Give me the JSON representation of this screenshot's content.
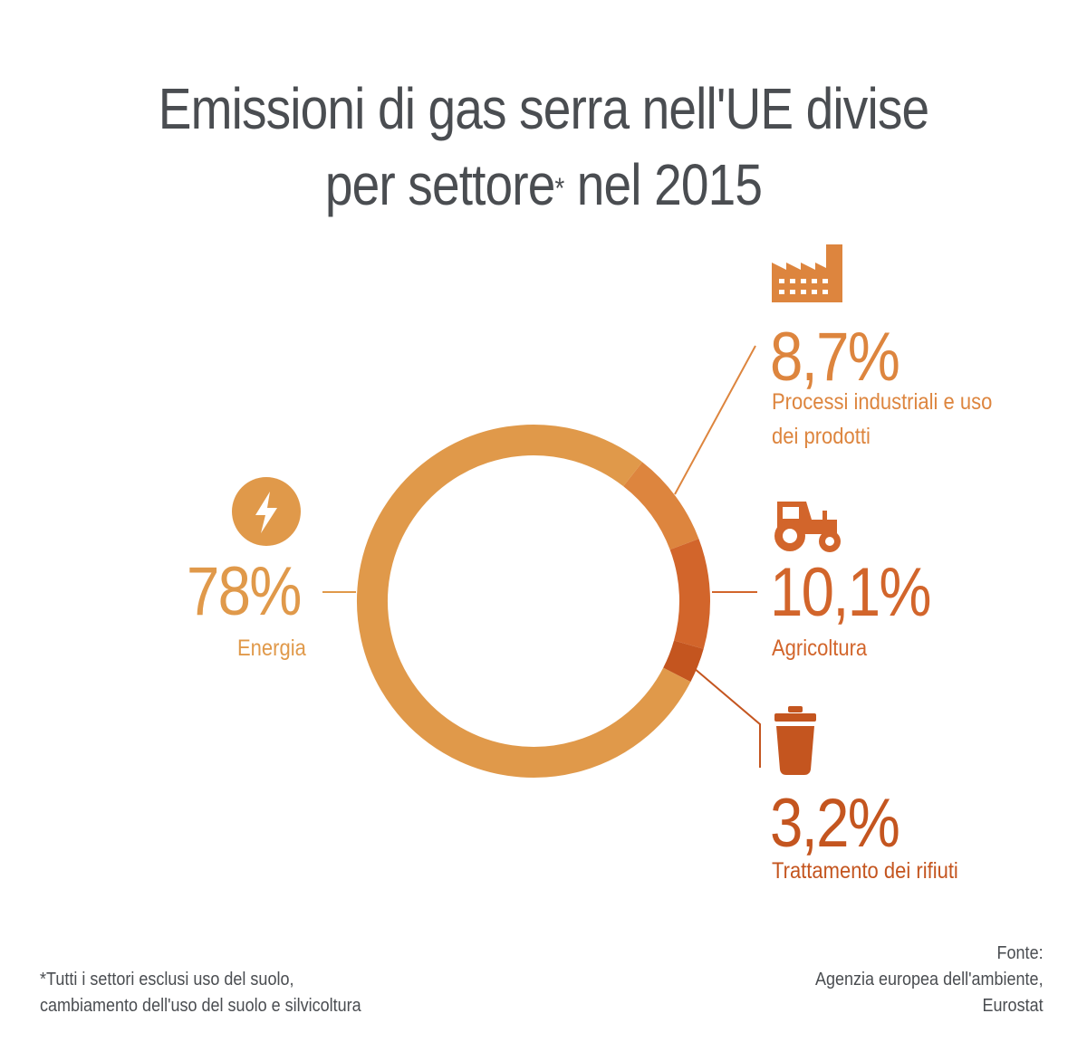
{
  "title": {
    "line1": "Emissioni di gas serra nell'UE divise",
    "line2_a": "per settore",
    "line2_mark": "*",
    "line2_b": " nel 2015"
  },
  "chart_data": {
    "type": "pie",
    "variant": "donut",
    "title": "Emissioni di gas serra nell'UE divise per settore* nel 2015",
    "series": [
      {
        "label": "Energia",
        "value": 78,
        "display": "78%",
        "color": "#e0994a",
        "icon": "lightning-bolt-icon"
      },
      {
        "label": "Processi industriali e uso dei prodotti",
        "value": 8.7,
        "display": "8,7%",
        "color": "#dd853e",
        "icon": "factory-icon"
      },
      {
        "label": "Agricoltura",
        "value": 10.1,
        "display": "10,1%",
        "color": "#d2652b",
        "icon": "tractor-icon"
      },
      {
        "label": "Trattamento dei rifiuti",
        "value": 3.2,
        "display": "3,2%",
        "color": "#c4551f",
        "icon": "trash-bin-icon"
      }
    ]
  },
  "footnote": {
    "line1": "*Tutti i settori esclusi uso del suolo,",
    "line2": "cambiamento dell'uso del suolo e silvicoltura"
  },
  "source": {
    "line1": "Fonte:",
    "line2": "Agenzia europea dell'ambiente,",
    "line3": "Eurostat"
  },
  "colors": {
    "title_text": "#4a4d51",
    "energia": "#e0994a",
    "industria": "#dd853e",
    "agricoltura": "#d2652b",
    "rifiuti": "#c4551f",
    "background": "#ffffff"
  }
}
